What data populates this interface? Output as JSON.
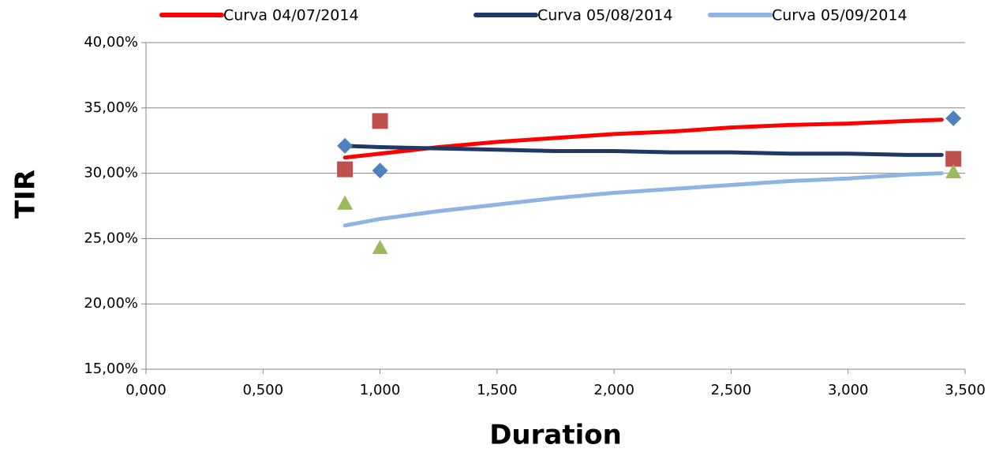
{
  "chart_data": {
    "type": "scatter",
    "x_label": "Duration",
    "y_label": "TIR",
    "xlim": [
      0,
      3.5
    ],
    "xticks": [
      {
        "value": 0,
        "label": "0,000"
      },
      {
        "value": 0.5,
        "label": "0,500"
      },
      {
        "value": 1,
        "label": "1,000"
      },
      {
        "value": 1.5,
        "label": "1,500"
      },
      {
        "value": 2,
        "label": "2,000"
      },
      {
        "value": 2.5,
        "label": "2,500"
      },
      {
        "value": 3,
        "label": "3,000"
      },
      {
        "value": 3.5,
        "label": "3,500"
      }
    ],
    "ylim": [
      15,
      40
    ],
    "yticks": [
      {
        "value": 15,
        "label": "15,00%"
      },
      {
        "value": 20,
        "label": "20,00%"
      },
      {
        "value": 25,
        "label": "25,00%"
      },
      {
        "value": 30,
        "label": "30,00%"
      },
      {
        "value": 35,
        "label": "35,00%"
      },
      {
        "value": 40,
        "label": "40,00%"
      }
    ],
    "grid": true,
    "legend": "top",
    "x": [
      0.85,
      1,
      1.25,
      1.5,
      1.75,
      2,
      2.25,
      2.5,
      2.75,
      3,
      3.25,
      3.4
    ],
    "series": [
      {
        "name": "Curva 04/07/2014",
        "color": "#ff0000",
        "values": [
          31.2,
          31.5,
          32.0,
          32.4,
          32.7,
          33.0,
          33.2,
          33.5,
          33.7,
          33.8,
          34.0,
          34.1
        ]
      },
      {
        "name": "Curva 05/08/2014",
        "color": "#1f3864",
        "values": [
          32.1,
          32.0,
          31.9,
          31.8,
          31.7,
          31.7,
          31.6,
          31.6,
          31.5,
          31.5,
          31.4,
          31.4
        ]
      },
      {
        "name": "Curva 05/09/2014",
        "color": "#8db4e2",
        "values": [
          26.0,
          26.5,
          27.1,
          27.6,
          28.1,
          28.5,
          28.8,
          29.1,
          29.4,
          29.6,
          29.9,
          30.0
        ]
      }
    ],
    "markers": [
      {
        "shape": "diamond",
        "color": "#4f81bd",
        "x": [
          0.85,
          1,
          3.45
        ],
        "values": [
          32.1,
          30.2,
          34.2
        ]
      },
      {
        "shape": "square",
        "color": "#c0504d",
        "x": [
          0.85,
          1,
          3.45
        ],
        "values": [
          30.3,
          34.0,
          31.1
        ]
      },
      {
        "shape": "triangle",
        "color": "#9bbb59",
        "x": [
          0.85,
          1,
          3.45
        ],
        "values": [
          27.7,
          24.3,
          30.1
        ]
      }
    ]
  }
}
